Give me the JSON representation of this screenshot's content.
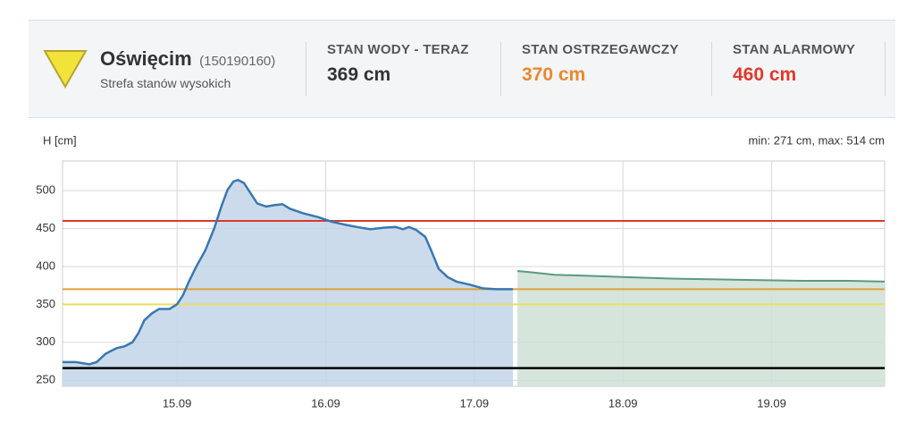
{
  "header": {
    "station": "Oświęcim",
    "station_id": "(150190160)",
    "zone": "Strefa stanów wysokich",
    "stats": [
      {
        "label": "STAN WODY - TERAZ",
        "value": "369 cm",
        "color": "#333333"
      },
      {
        "label": "STAN OSTRZEGAWCZY",
        "value": "370 cm",
        "color": "#e8892b"
      },
      {
        "label": "STAN ALARMOWY",
        "value": "460 cm",
        "color": "#e0392b"
      }
    ]
  },
  "chart_data": {
    "type": "line",
    "y_label": "H [cm]",
    "annotation": "min: 271 cm, max: 514 cm",
    "xlim": [
      14.23,
      19.76
    ],
    "ylim": [
      242,
      539
    ],
    "xticks": [
      {
        "value": 15,
        "label": "15.09"
      },
      {
        "value": 16,
        "label": "16.09"
      },
      {
        "value": 17,
        "label": "17.09"
      },
      {
        "value": 18,
        "label": "18.09"
      },
      {
        "value": 19,
        "label": "19.09"
      }
    ],
    "yticks": [
      250,
      300,
      350,
      400,
      450,
      500
    ],
    "grid": true,
    "thresholds": [
      {
        "value": 460,
        "color": "#d9392b"
      },
      {
        "value": 370,
        "color": "#e0a03a"
      },
      {
        "value": 350,
        "color": "#e8e060"
      },
      {
        "value": 266,
        "color": "#000000"
      }
    ],
    "series": [
      {
        "color": "#3a78b0",
        "fill": "#c3d5e8",
        "x": [
          14.23,
          14.32,
          14.41,
          14.46,
          14.52,
          14.59,
          14.65,
          14.7,
          14.74,
          14.78,
          14.83,
          14.88,
          14.95,
          15.0,
          15.04,
          15.08,
          15.13,
          15.19,
          15.25,
          15.3,
          15.34,
          15.38,
          15.41,
          15.45,
          15.49,
          15.54,
          15.6,
          15.66,
          15.71,
          15.76,
          15.85,
          15.95,
          16.04,
          16.13,
          16.21,
          16.3,
          16.39,
          16.47,
          16.52,
          16.56,
          16.61,
          16.67,
          16.71,
          16.76,
          16.82,
          16.88,
          16.97,
          17.06,
          17.15,
          17.26
        ],
        "values": [
          274,
          274,
          271,
          274,
          285,
          292,
          295,
          300,
          312,
          329,
          338,
          344,
          344,
          350,
          362,
          380,
          400,
          421,
          450,
          480,
          501,
          512,
          514,
          510,
          498,
          483,
          479,
          481,
          482,
          476,
          470,
          465,
          459,
          455,
          452,
          449,
          451,
          452,
          449,
          452,
          448,
          439,
          421,
          397,
          386,
          380,
          376,
          371,
          370,
          370
        ]
      },
      {
        "color": "#5a9a80",
        "fill": "#cfe0d6",
        "x": [
          17.29,
          17.42,
          17.54,
          17.72,
          18.02,
          18.32,
          18.62,
          18.92,
          19.22,
          19.52,
          19.76
        ],
        "values": [
          394,
          391.5,
          389,
          388,
          386,
          384,
          383,
          382,
          381,
          381,
          380
        ]
      }
    ]
  }
}
